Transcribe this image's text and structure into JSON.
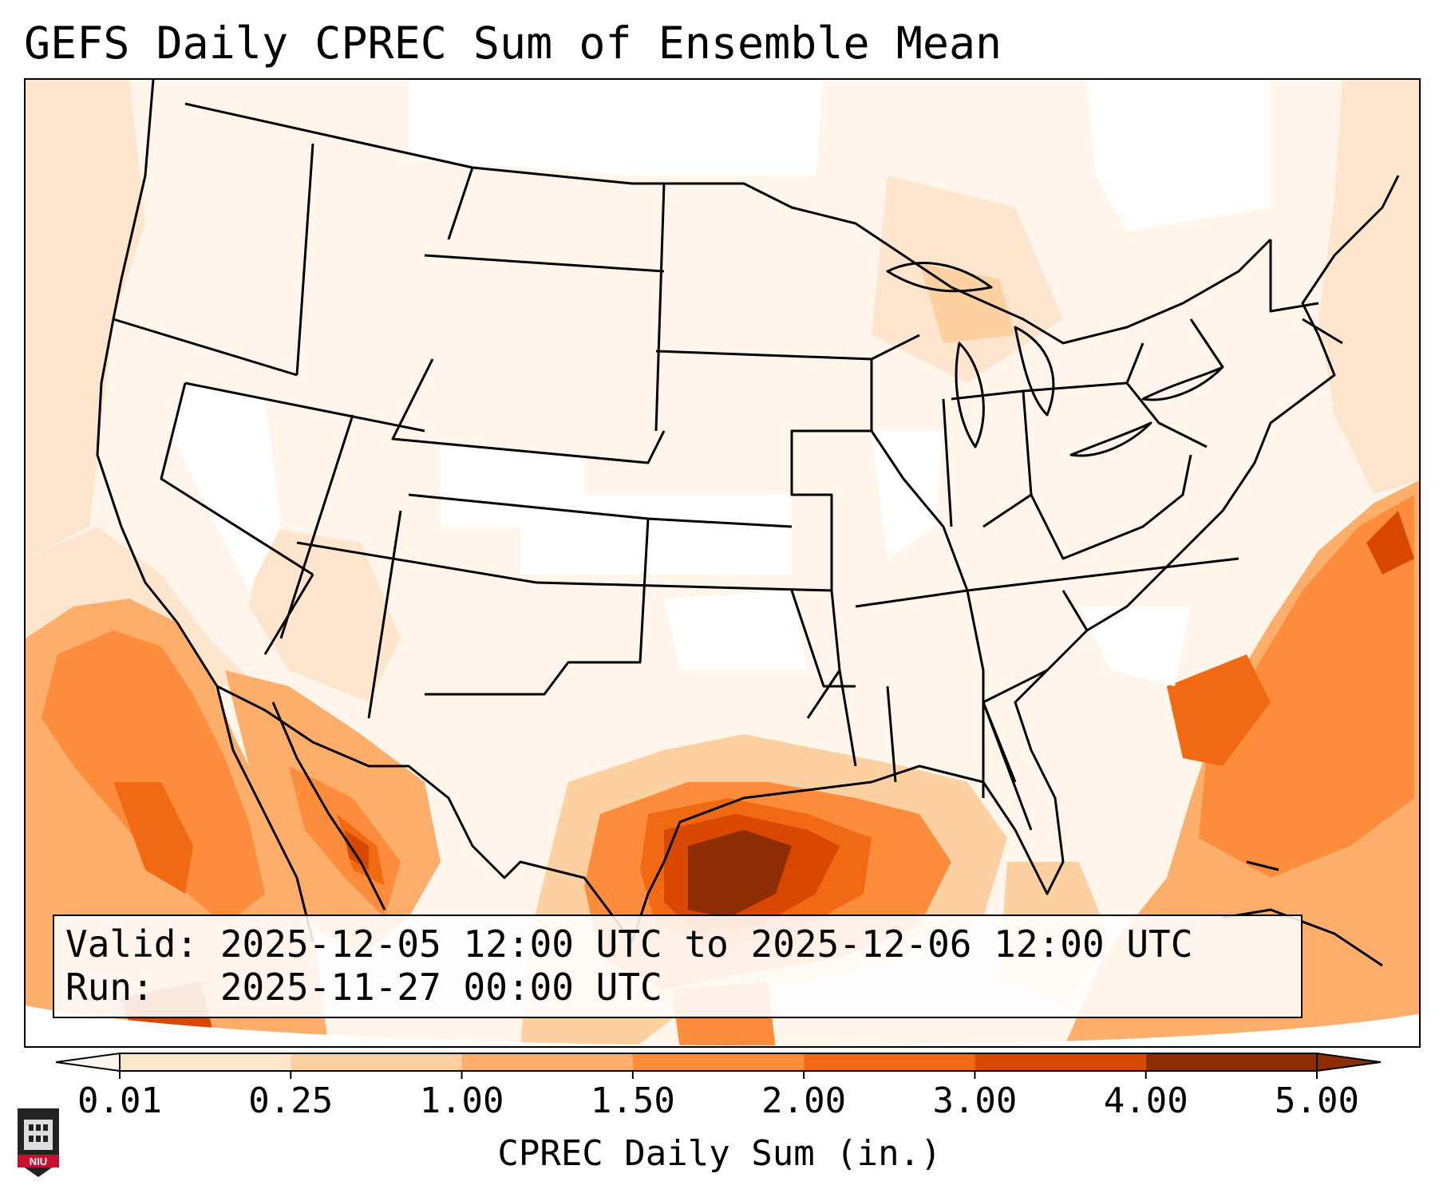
{
  "title": "GEFS Daily CPREC Sum of Ensemble Mean",
  "info": {
    "valid": "Valid: 2025-12-05 12:00 UTC to 2025-12-06 12:00 UTC",
    "run": "Run:   2025-11-27 00:00 UTC"
  },
  "colorbar": {
    "label": "CPREC Daily Sum (in.)",
    "ticks": [
      "0.01",
      "0.25",
      "1.00",
      "1.50",
      "2.00",
      "3.00",
      "4.00",
      "5.00"
    ],
    "colors": [
      "#fff5eb",
      "#fee6ce",
      "#fdd0a2",
      "#fdae6b",
      "#fd8d3c",
      "#f16913",
      "#d94801",
      "#8c2d04"
    ]
  },
  "logo": {
    "text": "NIU"
  }
}
